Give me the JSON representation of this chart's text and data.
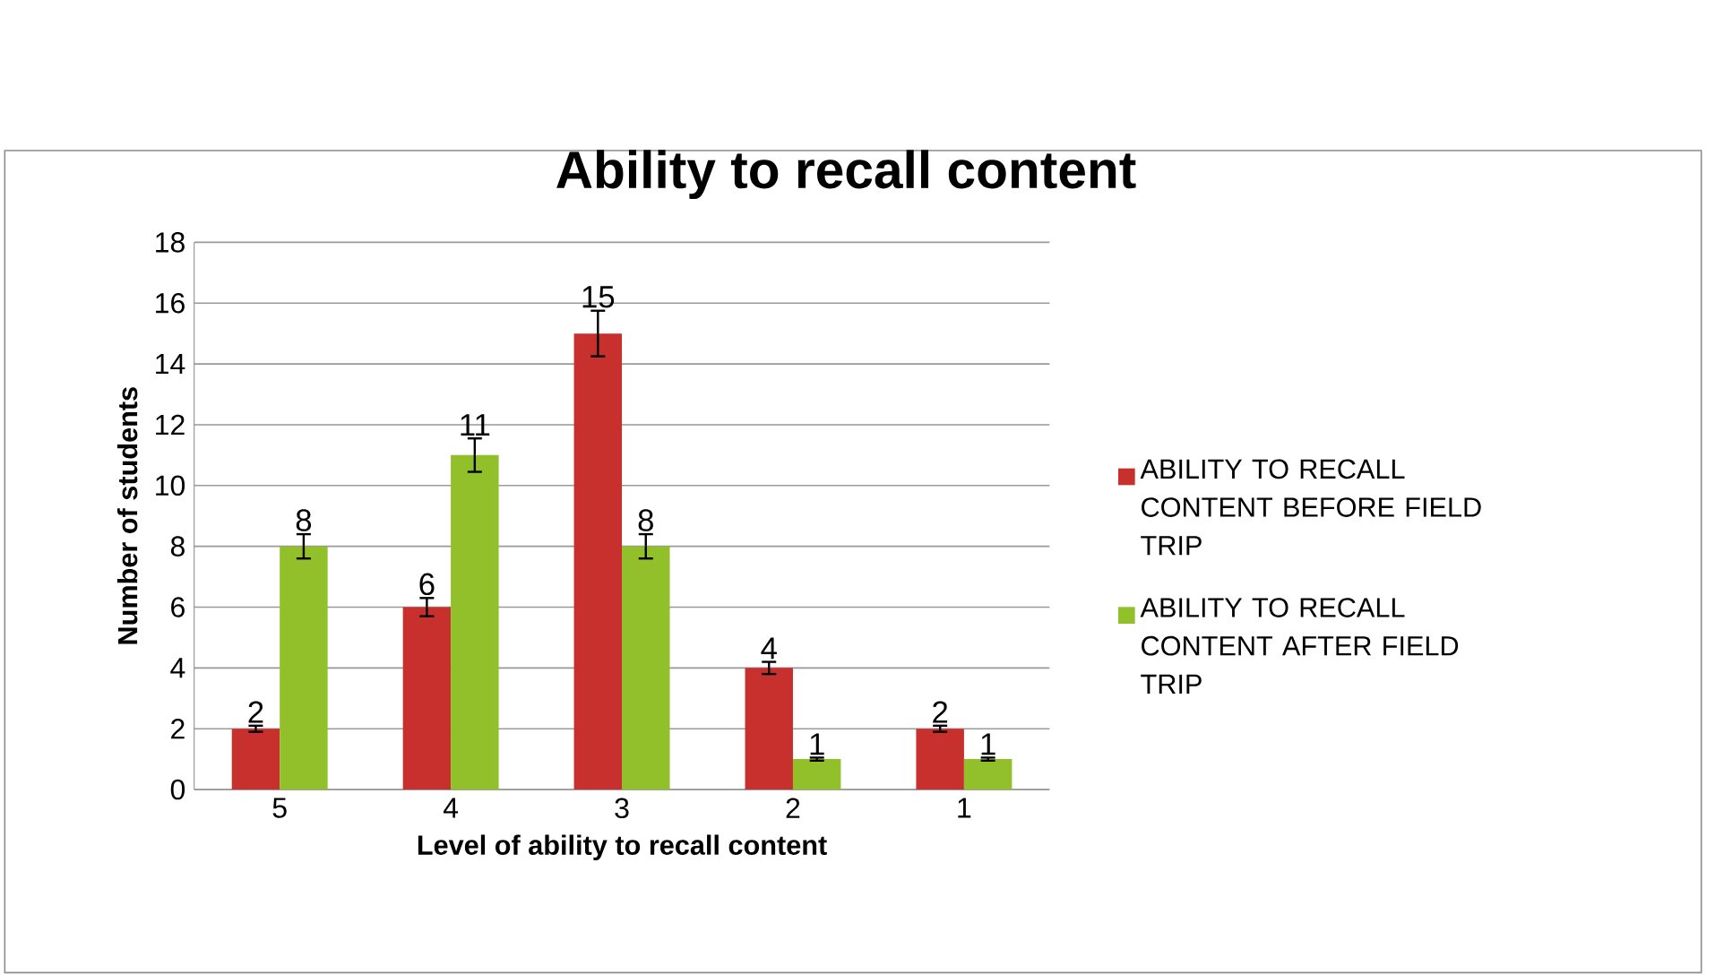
{
  "chart_data": {
    "type": "bar",
    "title": "Ability to recall content",
    "xlabel": "Level of ability to recall content",
    "ylabel": "Number of students",
    "categories": [
      "5",
      "4",
      "3",
      "2",
      "1"
    ],
    "series": [
      {
        "name": "ABILITY TO RECALL CONTENT BEFORE FIELD TRIP",
        "color": "#c8302e",
        "values": [
          2,
          6,
          15,
          4,
          2
        ],
        "errors": [
          0.1,
          0.3,
          0.75,
          0.2,
          0.1
        ]
      },
      {
        "name": "ABILITY TO RECALL CONTENT AFTER FIELD TRIP",
        "color": "#92c02a",
        "values": [
          8,
          11,
          8,
          1,
          1
        ],
        "errors": [
          0.4,
          0.55,
          0.4,
          0.05,
          0.05
        ]
      }
    ],
    "ylim": [
      0,
      18
    ],
    "yticks": [
      0,
      2,
      4,
      6,
      8,
      10,
      12,
      14,
      16,
      18
    ],
    "grid": "y",
    "legend": "right",
    "data_labels": true
  }
}
